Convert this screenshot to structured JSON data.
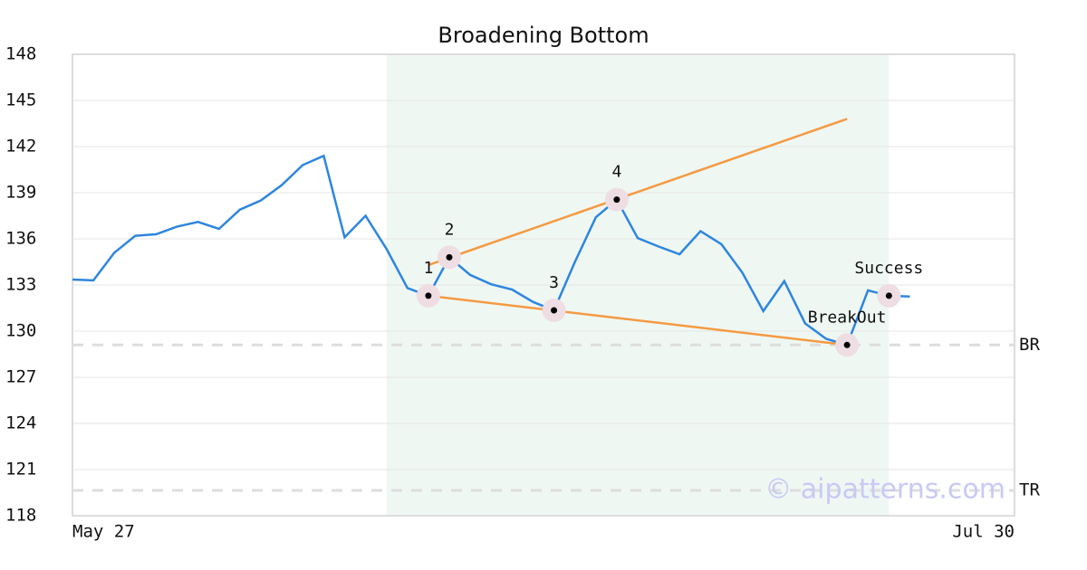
{
  "chart_data": {
    "type": "line",
    "title": "Broadening Bottom",
    "categories": [
      "May 27",
      null,
      null,
      null,
      null,
      null,
      null,
      null,
      null,
      null,
      null,
      null,
      null,
      null,
      null,
      null,
      null,
      null,
      null,
      null,
      null,
      null,
      null,
      null,
      null,
      null,
      null,
      null,
      null,
      null,
      null,
      null,
      null,
      null,
      null,
      null,
      null,
      null,
      null,
      null,
      null,
      null,
      null,
      null,
      null,
      "Jul 30"
    ],
    "values": [
      133.35,
      133.3,
      135.1,
      136.2,
      136.3,
      136.8,
      137.1,
      136.65,
      137.9,
      138.5,
      139.5,
      140.8,
      141.4,
      136.1,
      137.5,
      135.35,
      132.8,
      132.3,
      134.8,
      133.65,
      133.05,
      132.7,
      131.9,
      131.35,
      134.5,
      137.4,
      138.55,
      136.05,
      135.5,
      135.0,
      136.5,
      135.65,
      133.8,
      131.3,
      133.25,
      130.5,
      129.5,
      129.1,
      132.65,
      132.3,
      132.25,
      null,
      null,
      null,
      null,
      null
    ],
    "color": "#2e86de",
    "ylim": [
      118,
      148
    ],
    "yticks": [
      118,
      121,
      124,
      127,
      130,
      133,
      136,
      139,
      142,
      145,
      148
    ],
    "grid": true,
    "highlight": [
      15,
      39
    ],
    "points": [
      {
        "label": "1",
        "index": 17
      },
      {
        "label": "2",
        "index": 18
      },
      {
        "label": "3",
        "index": 23
      },
      {
        "label": "4",
        "index": 26
      },
      {
        "label": "BreakOut",
        "index": 37
      },
      {
        "label": "Success",
        "index": 39
      }
    ],
    "trend_lines": [
      {
        "from": [
          17,
          134.3
        ],
        "to": [
          37,
          143.8
        ]
      },
      {
        "from": [
          17,
          132.3
        ],
        "to": [
          37,
          129.1
        ]
      }
    ],
    "trend_color": "#f59a42",
    "levels": [
      {
        "label": "BR",
        "value": 129.1
      },
      {
        "label": "TR",
        "value": 119.65
      }
    ],
    "watermark": "© aipatterns.com"
  }
}
